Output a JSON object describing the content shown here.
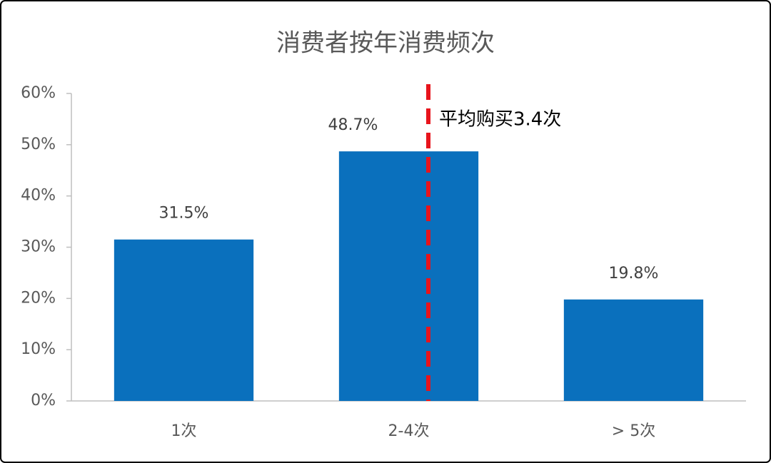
{
  "chart_data": {
    "type": "bar",
    "title": "消费者按年消费频次",
    "categories": [
      "1次",
      "2-4次",
      "> 5次"
    ],
    "values": [
      31.5,
      48.7,
      19.8
    ],
    "value_labels": [
      "31.5%",
      "48.7%",
      "19.8%"
    ],
    "color": "#0a70bd",
    "ylim": [
      0,
      60
    ],
    "yticks": [
      {
        "value": 0,
        "label": "0%"
      },
      {
        "value": 10,
        "label": "10%"
      },
      {
        "value": 20,
        "label": "20%"
      },
      {
        "value": 30,
        "label": "30%"
      },
      {
        "value": 40,
        "label": "40%"
      },
      {
        "value": 50,
        "label": "50%"
      },
      {
        "value": 60,
        "label": "60%"
      }
    ],
    "annotation": "平均购买3.4次"
  }
}
